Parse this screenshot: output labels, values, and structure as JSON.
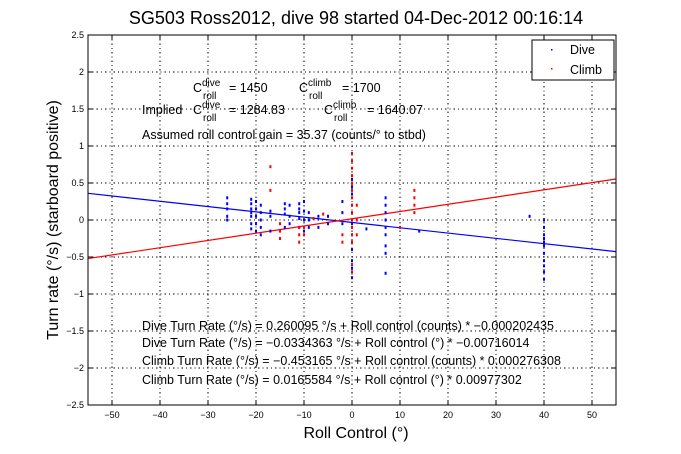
{
  "chart_data": {
    "type": "scatter",
    "title": "SG503 Ross2012, dive 98 started 04-Dec-2012 00:16:14",
    "xlabel": "Roll Control (°)",
    "ylabel": "Turn rate (°/s) (starboard positive)",
    "xlim": [
      -55,
      55
    ],
    "ylim": [
      -2.5,
      2.5
    ],
    "grid": true,
    "legend_position": "top-right",
    "x_ticks": [
      "−50",
      "−40",
      "−30",
      "−20",
      "−10",
      "0",
      "10",
      "20",
      "30",
      "40",
      "50"
    ],
    "x_tick_values": [
      -50,
      -40,
      -30,
      -20,
      -10,
      0,
      10,
      20,
      30,
      40,
      50
    ],
    "y_ticks": [
      "2.5",
      "2",
      "1.5",
      "1",
      "0.5",
      "0",
      "−0.5",
      "−1",
      "−1.5",
      "−2",
      "−2.5"
    ],
    "y_tick_values": [
      2.5,
      2,
      1.5,
      1,
      0.5,
      0,
      -0.5,
      -1,
      -1.5,
      -2,
      -2.5
    ],
    "series": [
      {
        "name": "Dive",
        "color": "#0000ff",
        "marker": "point",
        "points": [
          [
            -26,
            0.3
          ],
          [
            -26,
            0.22
          ],
          [
            -26,
            0.15
          ],
          [
            -26,
            0.05
          ],
          [
            -26,
            0.0
          ],
          [
            -21,
            0.28
          ],
          [
            -21,
            0.22
          ],
          [
            -21,
            0.15
          ],
          [
            -21,
            0.1
          ],
          [
            -21,
            0.05
          ],
          [
            -21,
            -0.05
          ],
          [
            -21,
            -0.12
          ],
          [
            -20,
            0.25
          ],
          [
            -20,
            0.15
          ],
          [
            -20,
            0.05
          ],
          [
            -20,
            -0.05
          ],
          [
            -20,
            -0.15
          ],
          [
            -19,
            0.2
          ],
          [
            -19,
            0.1
          ],
          [
            -19,
            0.0
          ],
          [
            -19,
            -0.1
          ],
          [
            -19,
            -0.2
          ],
          [
            -17,
            0.12
          ],
          [
            -17,
            0.05
          ],
          [
            -17,
            -0.15
          ],
          [
            -14,
            0.22
          ],
          [
            -14,
            0.15
          ],
          [
            -14,
            0.08
          ],
          [
            -14,
            -0.1
          ],
          [
            -13,
            0.2
          ],
          [
            -13,
            0.05
          ],
          [
            -13,
            -0.05
          ],
          [
            -11,
            0.22
          ],
          [
            -11,
            0.15
          ],
          [
            -11,
            0.1
          ],
          [
            -11,
            0.02
          ],
          [
            -11,
            -0.1
          ],
          [
            -10,
            0.25
          ],
          [
            -10,
            0.12
          ],
          [
            -10,
            0.0
          ],
          [
            -10,
            -0.15
          ],
          [
            -9,
            0.1
          ],
          [
            -9,
            0.0
          ],
          [
            -9,
            -0.1
          ],
          [
            -7,
            0.05
          ],
          [
            -7,
            -0.1
          ],
          [
            -5,
            0.05
          ],
          [
            -5,
            -0.05
          ],
          [
            -2,
            0.25
          ],
          [
            -2,
            0.1
          ],
          [
            -2,
            -0.05
          ],
          [
            0,
            0.55
          ],
          [
            0,
            0.45
          ],
          [
            0,
            0.35
          ],
          [
            0,
            0.2
          ],
          [
            0,
            -0.05
          ],
          [
            0,
            -0.2
          ],
          [
            0,
            -0.3
          ],
          [
            0,
            -0.4
          ],
          [
            0,
            -0.55
          ],
          [
            0,
            -0.65
          ],
          [
            0,
            -0.78
          ],
          [
            7,
            0.3
          ],
          [
            7,
            0.2
          ],
          [
            7,
            0.1
          ],
          [
            7,
            0.0
          ],
          [
            7,
            -0.1
          ],
          [
            7,
            -0.2
          ],
          [
            7,
            -0.35
          ],
          [
            7,
            -0.45
          ],
          [
            7,
            -0.72
          ],
          [
            3,
            -0.12
          ],
          [
            14,
            -0.15
          ],
          [
            37,
            0.05
          ],
          [
            40,
            0.0
          ],
          [
            40,
            -0.1
          ],
          [
            40,
            -0.2
          ],
          [
            40,
            -0.25
          ],
          [
            40,
            -0.3
          ],
          [
            40,
            -0.35
          ],
          [
            40,
            -0.45
          ],
          [
            40,
            -0.55
          ],
          [
            40,
            -0.62
          ],
          [
            40,
            -0.7
          ],
          [
            40,
            -0.8
          ]
        ]
      },
      {
        "name": "Climb",
        "color": "#ff0000",
        "marker": "point",
        "points": [
          [
            -17,
            0.72
          ],
          [
            -17,
            0.4
          ],
          [
            -15,
            -0.05
          ],
          [
            -15,
            -0.15
          ],
          [
            -15,
            -0.25
          ],
          [
            -11,
            -0.1
          ],
          [
            -11,
            -0.2
          ],
          [
            -11,
            -0.3
          ],
          [
            -10,
            -0.1
          ],
          [
            -10,
            -0.2
          ],
          [
            -8,
            0.02
          ],
          [
            -6,
            0.08
          ],
          [
            0,
            0.9
          ],
          [
            0,
            0.8
          ],
          [
            0,
            0.7
          ],
          [
            0,
            0.6
          ],
          [
            0,
            0.5
          ],
          [
            0,
            0.4
          ],
          [
            0,
            0.3
          ],
          [
            0,
            0.2
          ],
          [
            0,
            0.1
          ],
          [
            0,
            0.0
          ],
          [
            0,
            -0.1
          ],
          [
            0,
            -0.2
          ],
          [
            0,
            -0.3
          ],
          [
            0,
            -0.6
          ],
          [
            0,
            -0.7
          ],
          [
            1,
            0.2
          ],
          [
            1,
            0.0
          ],
          [
            1,
            -0.2
          ],
          [
            -2,
            -0.2
          ],
          [
            -2,
            -0.3
          ],
          [
            10,
            -0.1
          ],
          [
            13,
            0.4
          ],
          [
            13,
            0.3
          ],
          [
            13,
            0.2
          ],
          [
            13,
            0.1
          ]
        ]
      }
    ],
    "fit_lines": [
      {
        "name": "Dive fit",
        "color": "#0000ff",
        "intercept": -0.0334363,
        "slope": -0.00716014
      },
      {
        "name": "Climb fit",
        "color": "#ff0000",
        "intercept": 0.0165584,
        "slope": 0.00977302
      }
    ],
    "annotations": {
      "c_roll_dive": {
        "prefix": "C",
        "sup": "dive",
        "sub": "roll",
        "value": "= 1450"
      },
      "c_roll_climb": {
        "prefix": "C",
        "sup": "climb",
        "sub": "roll",
        "value": "= 1700"
      },
      "implied_label": "Implied",
      "implied_dive": {
        "prefix": "C",
        "sup": "dive",
        "sub": "roll",
        "value": "= 1284.83"
      },
      "implied_climb": {
        "prefix": "C",
        "sup": "climb",
        "sub": "roll",
        "value": "= 1640.07"
      },
      "gain": "Assumed roll control gain = 35.37 (counts/° to stbd)",
      "equations": [
        "Dive Turn Rate (°/s) = 0.260095 °/s + Roll control (counts) * −0.000202435",
        "Dive Turn Rate (°/s) = −0.0334363 °/s + Roll control (°) * −0.00716014",
        "Climb Turn Rate (°/s) = −0.453165 °/s + Roll control (counts) * 0.000276308",
        "Climb Turn Rate (°/s) = 0.0165584 °/s + Roll control (°) * 0.00977302"
      ]
    },
    "legend": [
      {
        "label": "Dive",
        "color": "#0000ff"
      },
      {
        "label": "Climb",
        "color": "#ff0000"
      }
    ]
  }
}
